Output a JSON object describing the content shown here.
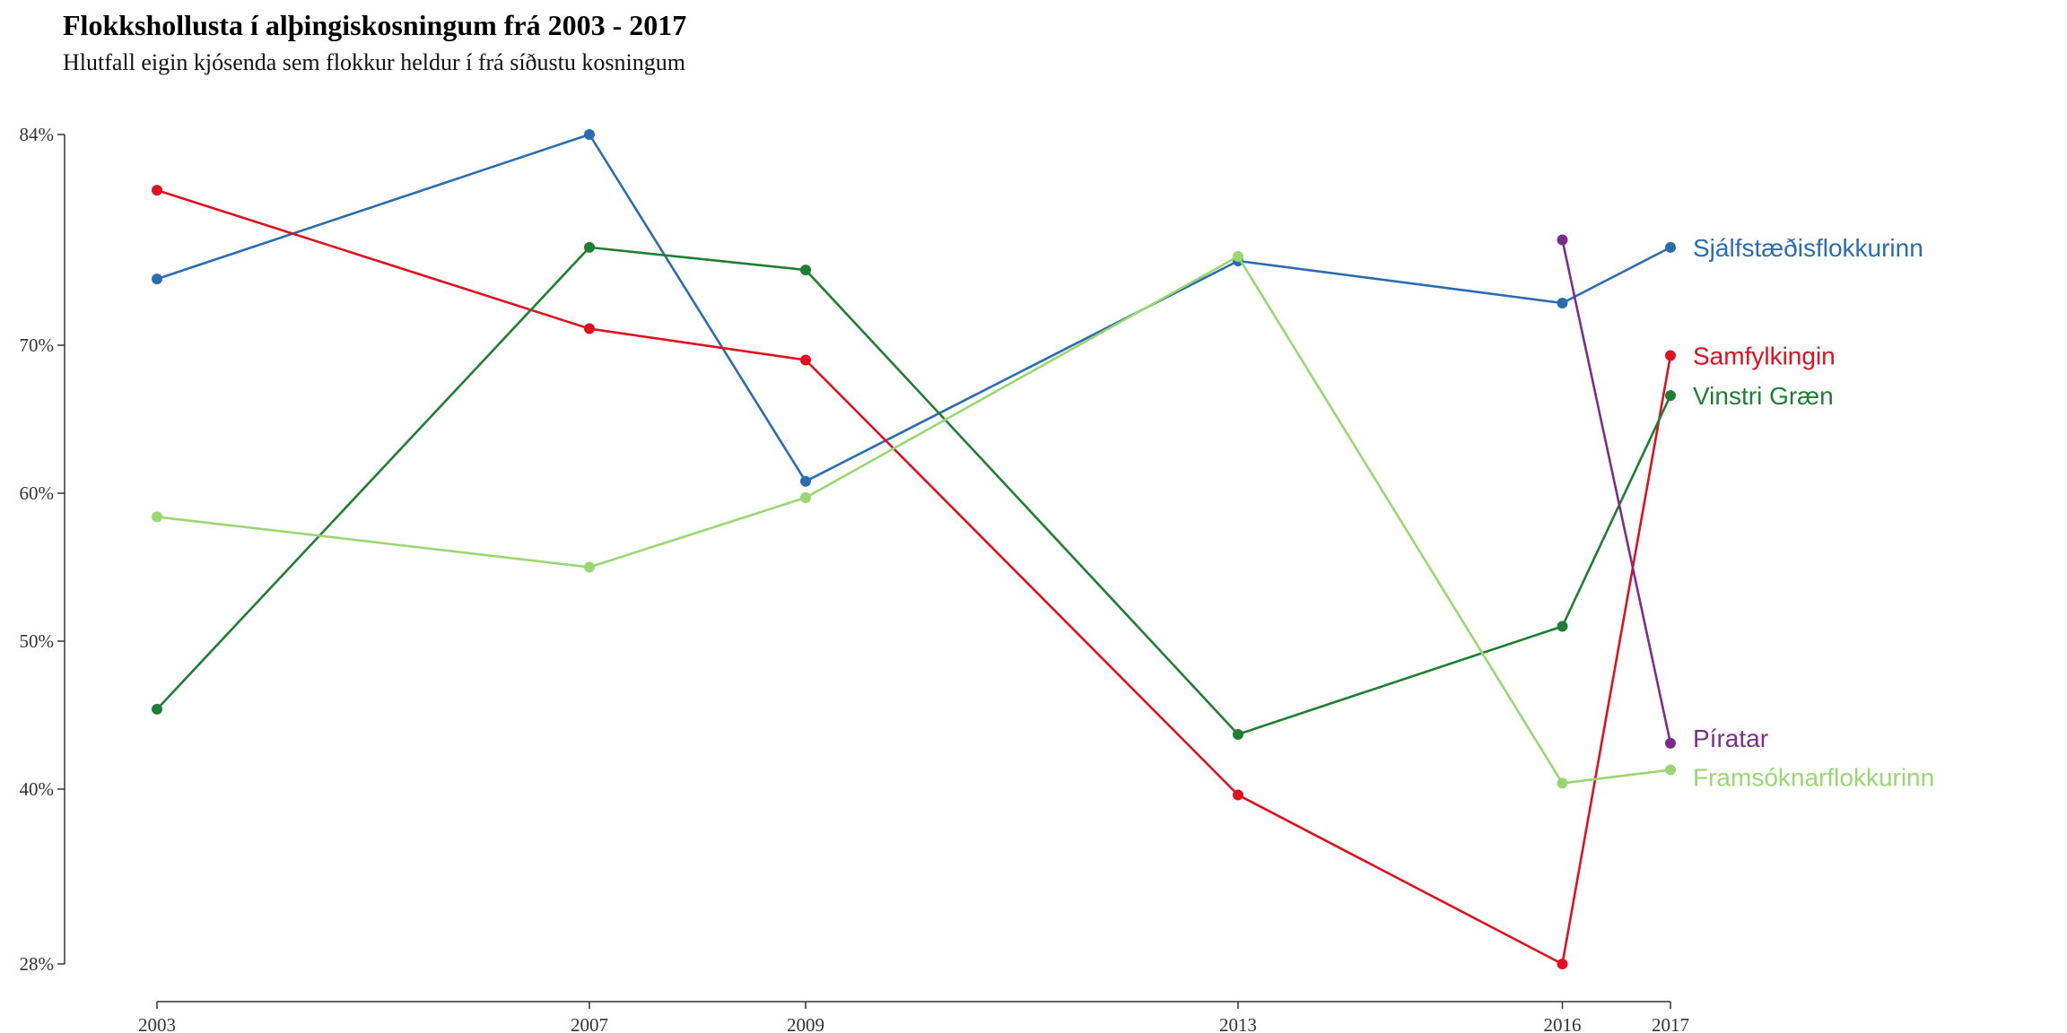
{
  "title": "Flokkshollusta í alþingiskosningum frá 2003 - 2017",
  "subtitle": "Hlutfall eigin kjósenda sem flokkur heldur í frá síðustu kosningum",
  "chart_data": {
    "type": "line",
    "x": [
      2003,
      2007,
      2009,
      2013,
      2016,
      2017
    ],
    "xticks": [
      "2003",
      "2007",
      "2009",
      "2013",
      "2016",
      "2017"
    ],
    "yticks": [
      {
        "value": 84,
        "label": "84%"
      },
      {
        "value": 70,
        "label": "70%"
      },
      {
        "value": 60,
        "label": "60%"
      },
      {
        "value": 50,
        "label": "50%"
      },
      {
        "value": 40,
        "label": "40%"
      },
      {
        "value": 28,
        "label": "28%"
      }
    ],
    "ylim": [
      28,
      84
    ],
    "xlim": [
      2003,
      2017
    ],
    "grid": false,
    "legend": "direct labels at line ends (right)",
    "series": [
      {
        "name": "Sjálfstæðisflokkurinn",
        "color": "#2B6CB0",
        "points": [
          [
            2003,
            74.4
          ],
          [
            2007,
            84.0
          ],
          [
            2009,
            60.8
          ],
          [
            2013,
            75.6
          ],
          [
            2016,
            72.8
          ],
          [
            2017,
            76.5
          ]
        ]
      },
      {
        "name": "Samfylkingin",
        "color": "#E0101E",
        "points": [
          [
            2003,
            80.3
          ],
          [
            2007,
            71.1
          ],
          [
            2009,
            69.0
          ],
          [
            2013,
            39.6
          ],
          [
            2016,
            28.0
          ],
          [
            2017,
            69.3
          ]
        ]
      },
      {
        "name": "Vinstri Græn",
        "color": "#1E7E34",
        "points": [
          [
            2003,
            45.4
          ],
          [
            2007,
            76.5
          ],
          [
            2009,
            75.0
          ],
          [
            2013,
            43.7
          ],
          [
            2016,
            51.0
          ],
          [
            2017,
            66.6
          ]
        ]
      },
      {
        "name": "Píratar",
        "color": "#7B2D8E",
        "points": [
          [
            2016,
            77.0
          ],
          [
            2017,
            43.1
          ]
        ]
      },
      {
        "name": "Framsóknarflokkurinn",
        "color": "#9BD770",
        "points": [
          [
            2003,
            58.4
          ],
          [
            2007,
            55.0
          ],
          [
            2009,
            59.7
          ],
          [
            2013,
            75.9
          ],
          [
            2016,
            40.4
          ],
          [
            2017,
            41.3
          ]
        ]
      }
    ]
  }
}
